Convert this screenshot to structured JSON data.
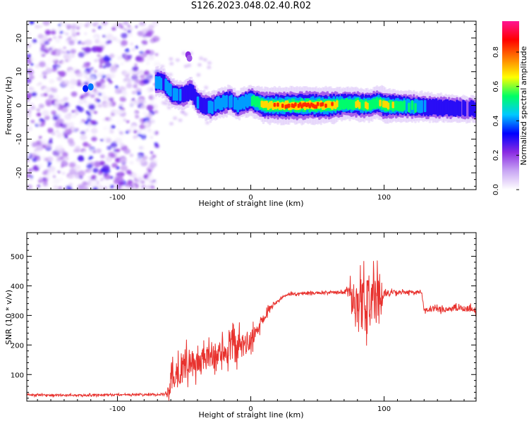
{
  "figure": {
    "title": "S126.2023.048.02.40.R02"
  },
  "colors": {
    "snr_line": "#e8322e",
    "axis": "#000000",
    "background": "#ffffff",
    "colormap_stops": [
      "#ffffff",
      "#c9a6f4",
      "#8a2be2",
      "#0000ff",
      "#00c8ff",
      "#00ff64",
      "#ffff00",
      "#ff8000",
      "#ff0000",
      "#ff1493"
    ]
  },
  "chart_data": [
    {
      "type": "heatmap",
      "title": "",
      "xlabel": "Height of straight line (km)",
      "ylabel": "Frequency (Hz)",
      "xlim": [
        -168,
        169
      ],
      "ylim": [
        -25,
        25
      ],
      "x_ticks": [
        -100,
        0,
        100
      ],
      "y_ticks": [
        -20,
        -10,
        0,
        10,
        20
      ],
      "grid": false,
      "colorbar": {
        "label": "Normalized spectral amplitude",
        "range": [
          0,
          0.98
        ],
        "ticks": [
          "0.0",
          "0.2",
          "0.4",
          "0.6",
          "0.8"
        ]
      },
      "noise_region_x": [
        -168,
        -70
      ],
      "ridge": {
        "x": [
          -70,
          -65,
          -60,
          -55,
          -50,
          -45,
          -40,
          -35,
          -30,
          -25,
          -20,
          -15,
          -10,
          -5,
          0,
          5,
          10,
          20,
          40,
          60,
          70,
          80,
          90,
          95,
          100,
          110,
          120,
          130,
          140,
          150,
          160,
          169
        ],
        "freq": [
          7,
          6.5,
          4,
          3,
          3,
          4.5,
          1,
          0,
          -0.5,
          0.5,
          1,
          1.5,
          0,
          1,
          1.5,
          0.8,
          0,
          0,
          0,
          0,
          0.5,
          0.3,
          0,
          1,
          0,
          0,
          -0.3,
          -0.5,
          -0.7,
          -0.8,
          -1,
          -1
        ],
        "amplitude": [
          0.45,
          0.45,
          0.45,
          0.4,
          0.4,
          0.4,
          0.4,
          0.4,
          0.45,
          0.45,
          0.5,
          0.45,
          0.45,
          0.5,
          0.55,
          0.65,
          0.8,
          0.85,
          0.9,
          0.85,
          0.6,
          0.7,
          0.65,
          0.6,
          0.8,
          0.6,
          0.55,
          0.45,
          0.4,
          0.35,
          0.3,
          0.3
        ]
      }
    },
    {
      "type": "line",
      "title": "",
      "xlabel": "Height of straight line (km)",
      "ylabel": "SNR (10 * v/v)",
      "xlim": [
        -168,
        169
      ],
      "ylim": [
        10,
        580
      ],
      "x_ticks": [
        -100,
        0,
        100
      ],
      "y_ticks": [
        100,
        200,
        300,
        400,
        500
      ],
      "grid": false,
      "series": [
        {
          "envelope_x": [
            -168,
            -150,
            -120,
            -100,
            -80,
            -65,
            -62,
            -60,
            -55,
            -50,
            -45,
            -40,
            -35,
            -30,
            -25,
            -20,
            -15,
            -10,
            -5,
            0,
            5,
            10,
            15,
            20,
            25,
            30,
            40,
            50,
            60,
            70,
            75,
            78,
            80,
            85,
            90,
            95,
            100,
            110,
            120,
            128,
            130,
            140,
            150,
            160,
            169
          ],
          "envelope_mean": [
            32,
            30,
            30,
            31,
            32,
            33,
            45,
            80,
            110,
            130,
            135,
            140,
            150,
            160,
            170,
            180,
            185,
            190,
            200,
            215,
            250,
            300,
            330,
            350,
            365,
            372,
            375,
            376,
            377,
            378,
            380,
            360,
            340,
            330,
            345,
            360,
            375,
            378,
            378,
            378,
            318,
            320,
            322,
            325,
            320
          ],
          "envelope_amp": [
            6,
            6,
            6,
            6,
            6,
            6,
            30,
            90,
            100,
            90,
            80,
            80,
            75,
            70,
            70,
            80,
            90,
            90,
            80,
            60,
            40,
            30,
            15,
            10,
            8,
            8,
            8,
            8,
            8,
            8,
            60,
            150,
            180,
            160,
            150,
            130,
            20,
            12,
            10,
            10,
            15,
            18,
            18,
            20,
            25
          ]
        }
      ]
    }
  ]
}
